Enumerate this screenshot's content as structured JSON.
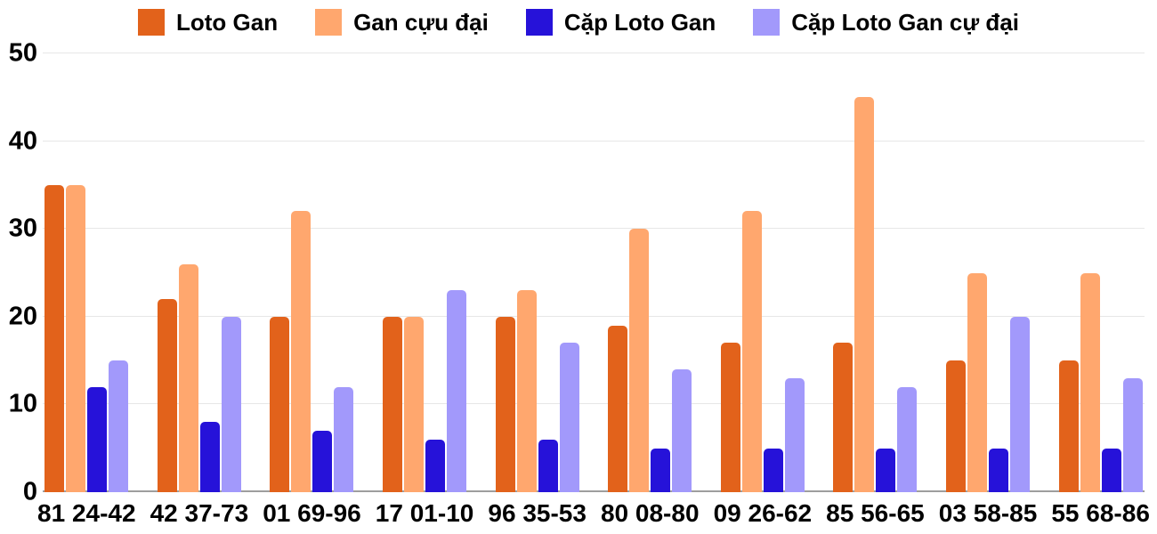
{
  "chart_data": {
    "type": "bar",
    "title": "",
    "xlabel": "",
    "ylabel": "",
    "ylim": [
      0,
      50
    ],
    "yticks": [
      0,
      10,
      20,
      30,
      40,
      50
    ],
    "grid": true,
    "legend_position": "top",
    "categories": [
      "81 24-42",
      "42 37-73",
      "01 69-96",
      "17 01-10",
      "96 35-53",
      "80 08-80",
      "09 26-62",
      "85 56-65",
      "03 58-85",
      "55 68-86"
    ],
    "series": [
      {
        "name": "Loto Gan",
        "color": "#e2621b",
        "values": [
          35,
          22,
          20,
          20,
          20,
          19,
          17,
          17,
          15,
          15
        ]
      },
      {
        "name": "Gan cựu đại",
        "color": "#ffa76e",
        "values": [
          35,
          26,
          32,
          20,
          23,
          30,
          32,
          45,
          25,
          25
        ]
      },
      {
        "name": "Cặp Loto Gan",
        "color": "#2612d9",
        "values": [
          12,
          8,
          7,
          6,
          6,
          5,
          5,
          5,
          5,
          5
        ]
      },
      {
        "name": "Cặp Loto Gan cự đại",
        "color": "#a299fb",
        "values": [
          15,
          20,
          12,
          23,
          17,
          14,
          13,
          12,
          20,
          13
        ]
      }
    ],
    "colors": {
      "gridline": "#e7e7e7",
      "baseline": "#9e9e9e",
      "text": "#000000",
      "background": "#ffffff"
    }
  }
}
